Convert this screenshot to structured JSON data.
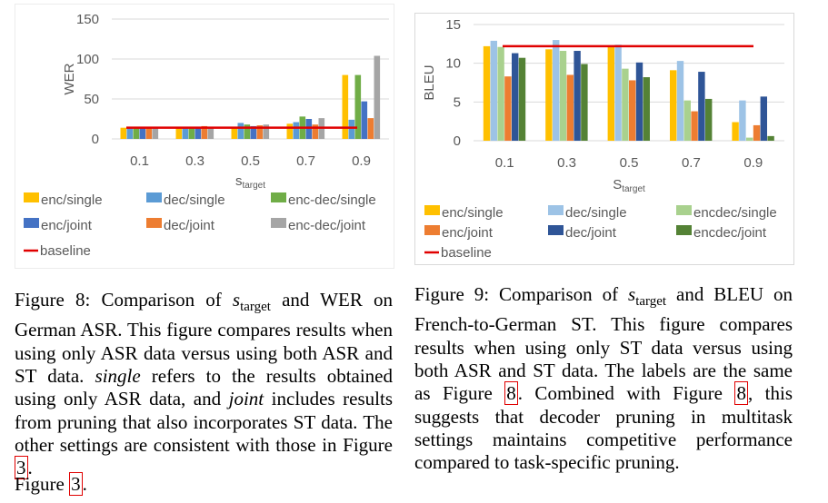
{
  "colors": {
    "enc_single": "#ffc000",
    "dec_single": "#5b9bd5",
    "encdec_single": "#70ad47",
    "enc_joint": "#4472c4",
    "dec_joint": "#ed7d31",
    "encdec_joint": "#a5a5a5",
    "baseline": "#e00000",
    "c2_enc_single": "#ffc000",
    "c2_dec_single": "#9dc3e6",
    "c2_encdec_single": "#a9d18e",
    "c2_enc_joint": "#ed7d31",
    "c2_dec_joint": "#2f5597",
    "c2_encdec_joint": "#548235",
    "grid": "#d9d9d9",
    "ref_box": "#e00000"
  },
  "chart_data": [
    {
      "type": "bar",
      "ylabel": "WER",
      "xlabel_main": "s",
      "xlabel_sub": "target",
      "categories": [
        "0.1",
        "0.3",
        "0.5",
        "0.7",
        "0.9"
      ],
      "ylim": [
        0,
        150
      ],
      "yticks": [
        "0",
        "50",
        "100",
        "150"
      ],
      "grid": true,
      "legend_position": "bottom",
      "series": [
        {
          "name": "enc/single",
          "color_key": "enc_single",
          "values": [
            14,
            14,
            14,
            19,
            80
          ]
        },
        {
          "name": "dec/single",
          "color_key": "dec_single",
          "values": [
            15,
            15,
            20,
            21,
            24
          ]
        },
        {
          "name": "enc-dec/single",
          "color_key": "encdec_single",
          "values": [
            14,
            14,
            18,
            28,
            80
          ]
        },
        {
          "name": "enc/joint",
          "color_key": "enc_joint",
          "values": [
            14,
            14,
            16,
            25,
            47
          ]
        },
        {
          "name": "dec/joint",
          "color_key": "dec_joint",
          "values": [
            15,
            16,
            17,
            18,
            26
          ]
        },
        {
          "name": "enc-dec/joint",
          "color_key": "encdec_joint",
          "values": [
            15,
            15,
            18,
            26,
            104
          ]
        }
      ],
      "baseline": {
        "name": "baseline",
        "value": 14
      }
    },
    {
      "type": "bar",
      "ylabel": "BLEU",
      "xlabel_main": "S",
      "xlabel_sub": "target",
      "categories": [
        "0.1",
        "0.3",
        "0.5",
        "0.7",
        "0.9"
      ],
      "ylim": [
        0,
        15
      ],
      "yticks": [
        "0",
        "5",
        "10",
        "15"
      ],
      "grid": true,
      "legend_position": "bottom",
      "series": [
        {
          "name": "enc/single",
          "color_key": "c2_enc_single",
          "values": [
            12.2,
            11.8,
            12.3,
            9.1,
            2.4
          ]
        },
        {
          "name": "dec/single",
          "color_key": "c2_dec_single",
          "values": [
            12.9,
            13.0,
            12.4,
            10.3,
            5.2
          ]
        },
        {
          "name": "encdec/single",
          "color_key": "c2_encdec_single",
          "values": [
            12.1,
            11.6,
            9.3,
            5.2,
            0.4
          ]
        },
        {
          "name": "enc/joint",
          "color_key": "c2_enc_joint",
          "values": [
            8.3,
            8.5,
            7.8,
            3.8,
            2.0
          ]
        },
        {
          "name": "dec/joint",
          "color_key": "c2_dec_joint",
          "values": [
            11.3,
            11.6,
            10.1,
            8.9,
            5.7
          ]
        },
        {
          "name": "encdec/joint",
          "color_key": "c2_encdec_joint",
          "values": [
            10.7,
            9.9,
            8.2,
            5.4,
            0.6
          ]
        }
      ],
      "baseline": {
        "name": "baseline",
        "value": 12.2
      }
    }
  ],
  "captions": {
    "fig8": {
      "lead": "Figure 8: Comparison of ",
      "s": "s",
      "sub": "target",
      "p1": " and WER on German ASR. This figure compares results when using only ASR data versus using both ASR and ST data. ",
      "em1": "single",
      "p2": " refers to the results obtained using only ASR data, and ",
      "em2": "joint",
      "p3": " includes results from pruning that also incorporates ST data. The other settings are consistent with those in Figure ",
      "ref": "3",
      "p4": "."
    },
    "fig9": {
      "lead": "Figure 9: Comparison of ",
      "s": "s",
      "sub": "target",
      "p1": " and BLEU on French-to-German ST. This figure compares results when using only ST data versus using both ASR and ST data. The labels are the same as Figure ",
      "ref1": "8",
      "p2": ". Combined with Figure ",
      "ref2": "8",
      "p3": ", this suggests that decoder pruning in multitask settings maintains competitive performance compared to task-specific pruning."
    },
    "ghost": {
      "text": "Figure ",
      "ref": "3",
      "end": "."
    }
  }
}
